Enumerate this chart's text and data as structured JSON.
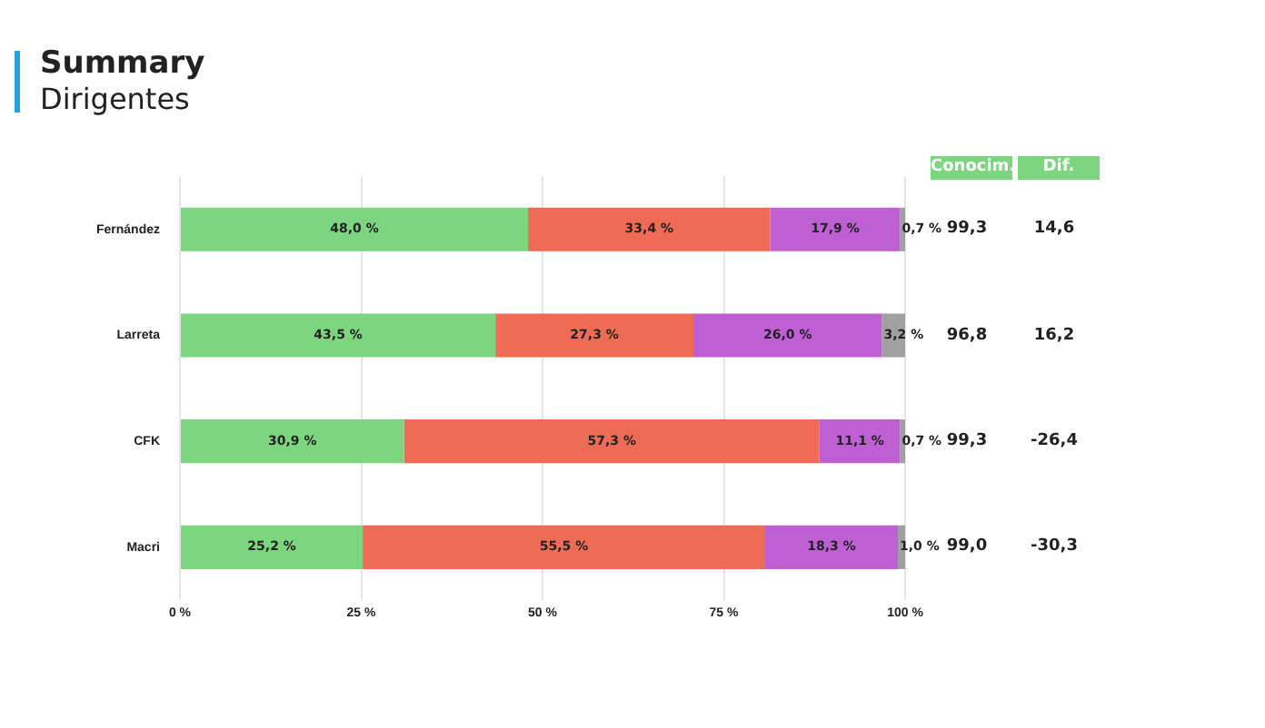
{
  "chart_data": {
    "type": "bar",
    "title": "Summary",
    "subtitle": "Dirigentes",
    "orientation": "horizontal",
    "stacked": true,
    "categories": [
      "Fernández",
      "Larreta",
      "CFK",
      "Macri"
    ],
    "series": [
      {
        "color": "#7dd67f",
        "values": [
          48.0,
          43.5,
          30.9,
          25.2
        ],
        "value_labels": [
          "48,0 %",
          "43,5 %",
          "30,9 %",
          "25,2 %"
        ]
      },
      {
        "color": "#ef6b55",
        "values": [
          33.4,
          27.3,
          57.3,
          55.5
        ],
        "value_labels": [
          "33,4 %",
          "27,3 %",
          "57,3 %",
          "55,5 %"
        ]
      },
      {
        "color": "#bf5fd4",
        "values": [
          17.9,
          26.0,
          11.1,
          18.3
        ],
        "value_labels": [
          "17,9 %",
          "26,0 %",
          "11,1 %",
          "18,3 %"
        ]
      },
      {
        "color": "#a0a0a0",
        "values": [
          0.7,
          3.2,
          0.7,
          1.0
        ],
        "value_labels": [
          "0,7 %",
          "3,2 %",
          "0,7 %",
          "1,0 %"
        ]
      }
    ],
    "xlim": [
      0,
      100
    ],
    "xticks": [
      {
        "value": 0,
        "label": "0 %"
      },
      {
        "value": 25,
        "label": "25 %"
      },
      {
        "value": 50,
        "label": "50 %"
      },
      {
        "value": 75,
        "label": "75 %"
      },
      {
        "value": 100,
        "label": "100 %"
      }
    ],
    "grid": "x",
    "legend": false,
    "annotations": [
      "Conocim.",
      "Dif.",
      "99,3",
      "14,6",
      "96,8",
      "16,2",
      "99,3",
      "-26,4",
      "99,0",
      "-30,3"
    ]
  }
}
